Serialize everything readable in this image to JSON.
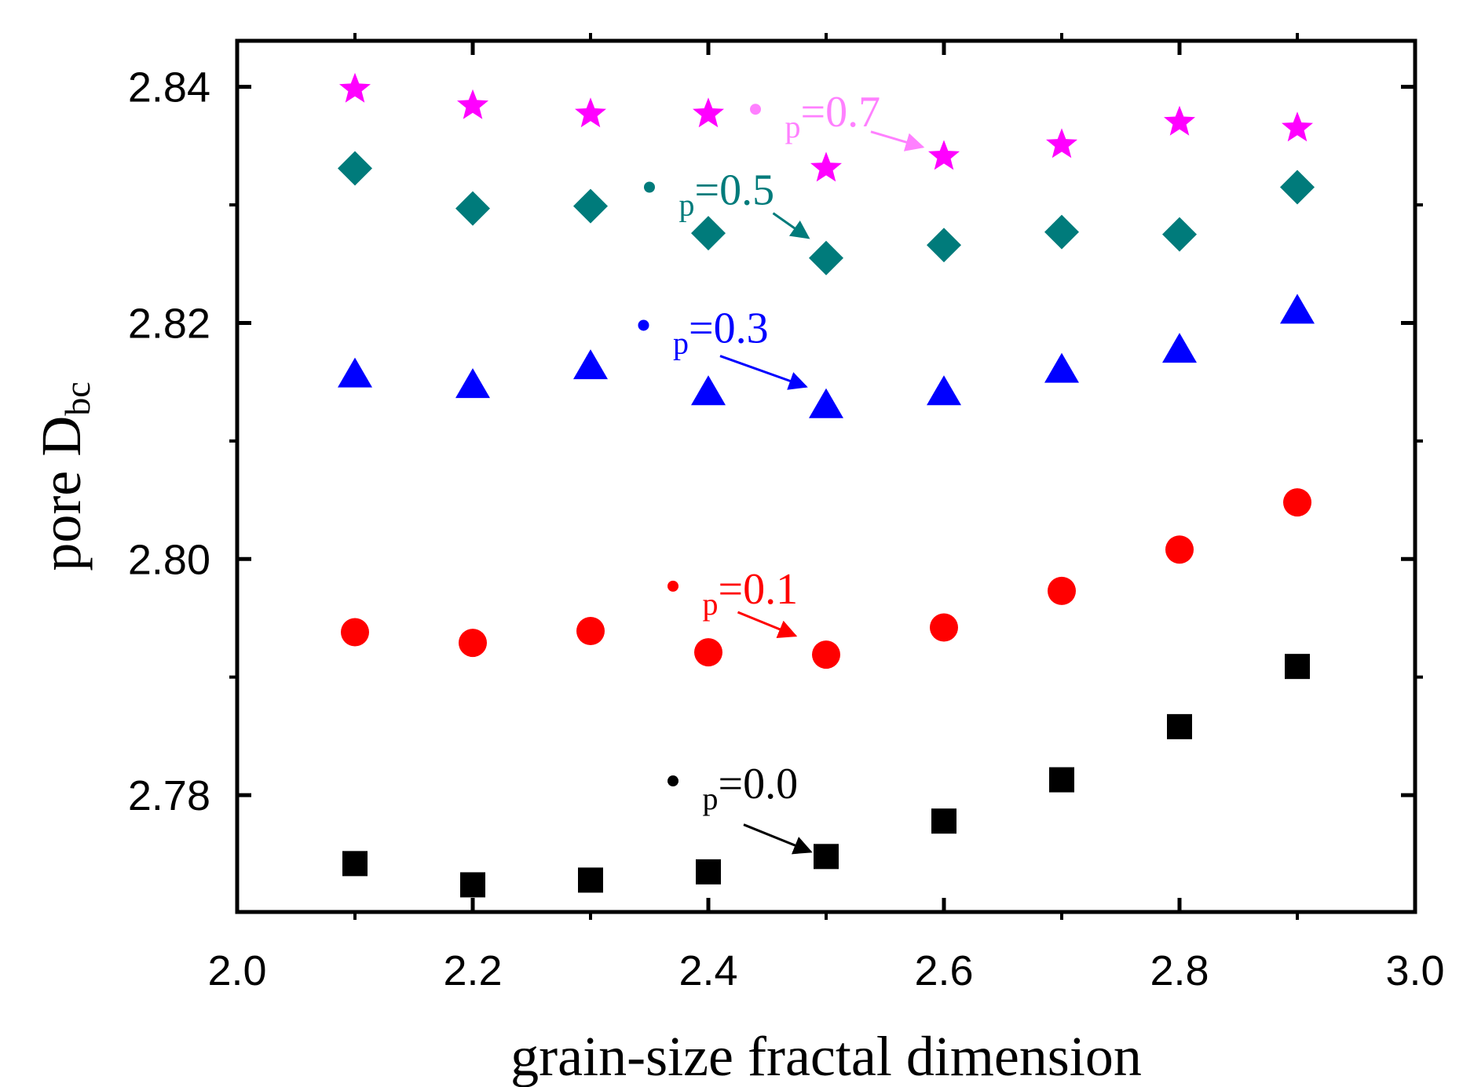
{
  "chart_data": {
    "type": "scatter",
    "title": "",
    "xlabel": "grain-size fractal dimension",
    "ylabel_main": "pore D",
    "ylabel_sub": "bc",
    "xlim": [
      2.0,
      3.0
    ],
    "ylim": [
      2.7701,
      2.8439
    ],
    "xticks": [
      2.0,
      2.2,
      2.4,
      2.6,
      2.8,
      3.0
    ],
    "xtick_labels": [
      "2.0",
      "2.2",
      "2.4",
      "2.6",
      "2.8",
      "3.0"
    ],
    "yticks": [
      2.78,
      2.8,
      2.82,
      2.84
    ],
    "ytick_labels": [
      "2.78",
      "2.80",
      "2.82",
      "2.84"
    ],
    "x": [
      2.1,
      2.2,
      2.3,
      2.4,
      2.5,
      2.6,
      2.7,
      2.8,
      2.9
    ],
    "series": [
      {
        "name": "p=0.0",
        "p_prefix": "p",
        "value_label": "=0.0",
        "marker": "square",
        "color": "#000000",
        "values": [
          2.7742,
          2.7724,
          2.7728,
          2.7735,
          2.7748,
          2.7778,
          2.7813,
          2.7858,
          2.7909
        ],
        "annotation": {
          "dot": [
            2.37,
            2.7812
          ],
          "label": [
            2.395,
            2.7812
          ],
          "arrow_from": [
            2.43,
            2.7775
          ],
          "arrow_to": [
            2.487,
            2.7752
          ]
        }
      },
      {
        "name": "p=0.1",
        "p_prefix": "p",
        "value_label": "=0.1",
        "marker": "circle",
        "color": "#ff0000",
        "values": [
          2.7938,
          2.7929,
          2.7939,
          2.7921,
          2.7919,
          2.7942,
          2.7973,
          2.8008,
          2.8048
        ],
        "annotation": {
          "dot": [
            2.37,
            2.7977
          ],
          "label": [
            2.395,
            2.7977
          ],
          "arrow_from": [
            2.425,
            2.7955
          ],
          "arrow_to": [
            2.474,
            2.7935
          ]
        }
      },
      {
        "name": "p=0.3",
        "p_prefix": "p",
        "value_label": "=0.3",
        "marker": "triangle",
        "color": "#0000ff",
        "values": [
          2.8156,
          2.8147,
          2.8163,
          2.8141,
          2.813,
          2.8141,
          2.816,
          2.8177,
          2.821
        ],
        "annotation": {
          "dot": [
            2.345,
            2.8198
          ],
          "label": [
            2.37,
            2.8198
          ],
          "arrow_from": [
            2.41,
            2.8172
          ],
          "arrow_to": [
            2.483,
            2.8146
          ]
        }
      },
      {
        "name": "p=0.5",
        "p_prefix": "p",
        "value_label": "=0.5",
        "marker": "diamond",
        "color": "#007b7b",
        "values": [
          2.8331,
          2.8297,
          2.8299,
          2.8276,
          2.8255,
          2.8266,
          2.8277,
          2.8275,
          2.8315
        ],
        "annotation": {
          "dot": [
            2.35,
            2.8315
          ],
          "label": [
            2.375,
            2.8315
          ],
          "arrow_from": [
            2.455,
            2.8293
          ],
          "arrow_to": [
            2.485,
            2.8272
          ]
        }
      },
      {
        "name": "p=0.7",
        "p_prefix": "p",
        "value_label": "=0.7",
        "marker": "star",
        "color": "#ff00ff",
        "annotation_color": "#ff80ff",
        "values": [
          2.8398,
          2.8384,
          2.8377,
          2.8377,
          2.8331,
          2.8341,
          2.8351,
          2.837,
          2.8365
        ],
        "annotation": {
          "dot": [
            2.44,
            2.8381
          ],
          "label": [
            2.465,
            2.8381
          ],
          "arrow_from": [
            2.538,
            2.8362
          ],
          "arrow_to": [
            2.582,
            2.8349
          ]
        }
      }
    ]
  }
}
